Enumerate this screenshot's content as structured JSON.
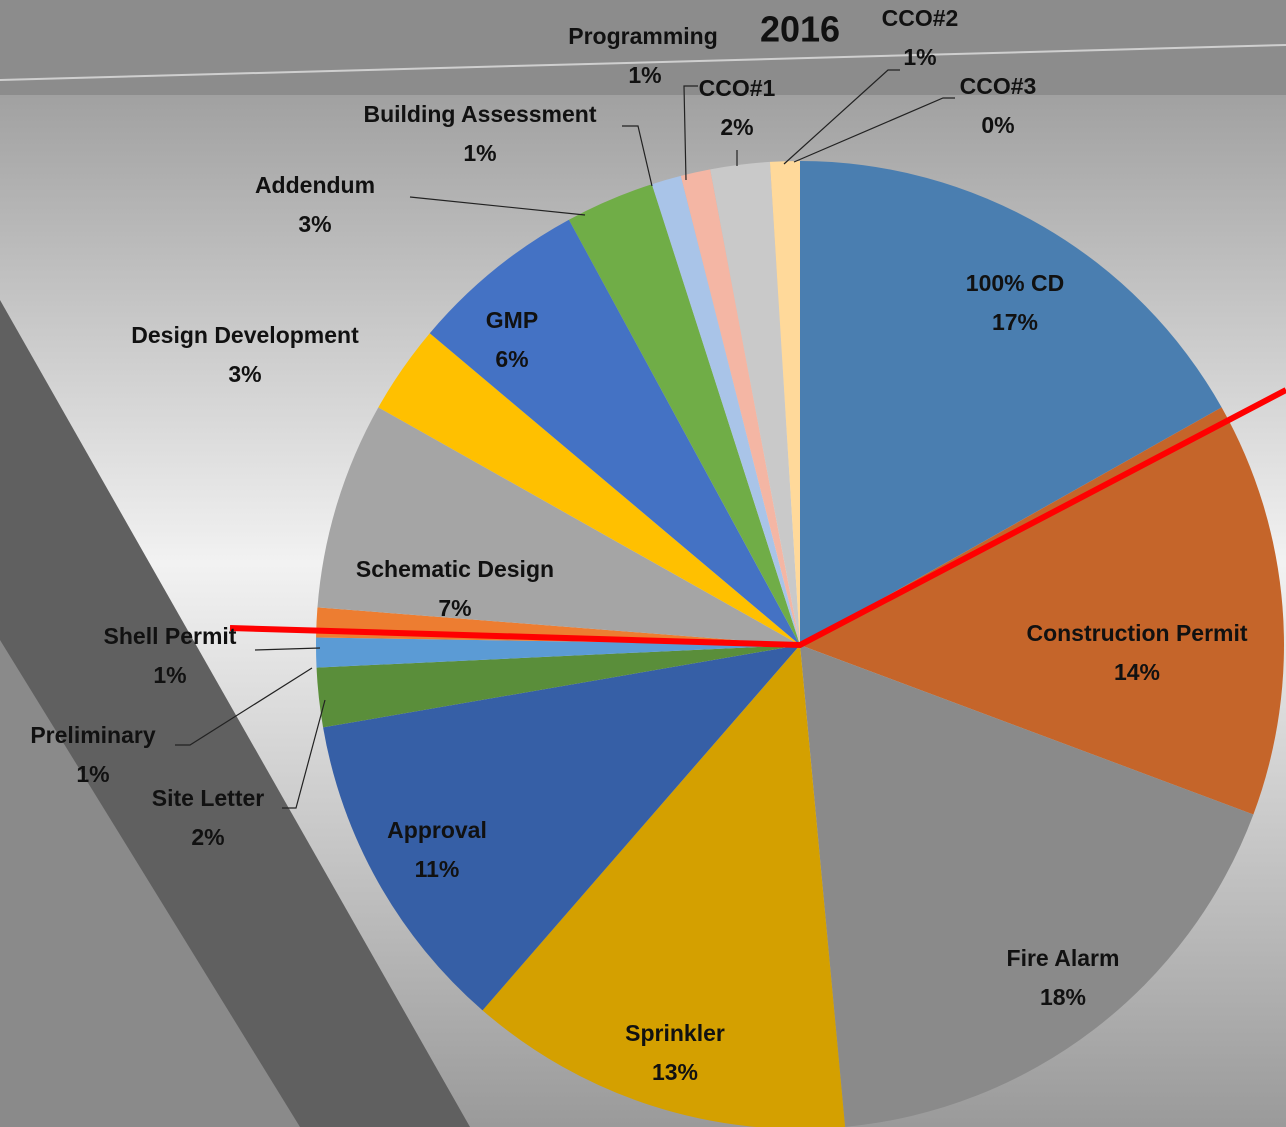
{
  "chart_data": {
    "type": "pie",
    "title": "2016",
    "categories": [
      "100% CD",
      "Construction Permit",
      "Fire Alarm",
      "Sprinkler",
      "Approval",
      "Site Letter",
      "Preliminary",
      "Shell Permit",
      "Schematic Design",
      "Design Development",
      "GMP",
      "Addendum",
      "Building Assessment",
      "Programming",
      "CCO#1",
      "CCO#2",
      "CCO#3"
    ],
    "values": [
      17,
      14,
      18,
      13,
      11,
      2,
      1,
      1,
      7,
      3,
      6,
      3,
      1,
      1,
      2,
      1,
      0
    ],
    "value_labels": [
      "17%",
      "14%",
      "18%",
      "13%",
      "11%",
      "2%",
      "1%",
      "1%",
      "7%",
      "3%",
      "6%",
      "3%",
      "1%",
      "1%",
      "2%",
      "1%",
      "0%"
    ],
    "colors": [
      "#4a7eb0",
      "#c5652a",
      "#8a8a8a",
      "#d4a000",
      "#365fa6",
      "#5a8e3a",
      "#5b9bd5",
      "#ed7d31",
      "#a5a5a5",
      "#ffc000",
      "#4472c4",
      "#70ad47",
      "#a9c4e8",
      "#f4b6a4",
      "#c9c9c9",
      "#ffd99a",
      "#9fb7e0"
    ]
  }
}
